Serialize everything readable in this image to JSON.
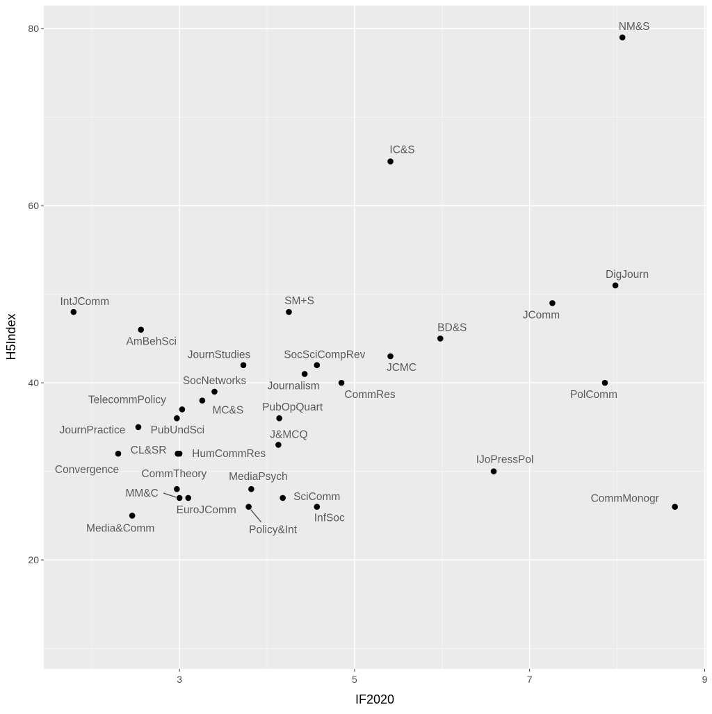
{
  "chart_data": {
    "type": "scatter",
    "title": "",
    "xlabel": "IF2020",
    "ylabel": "H5Index",
    "xlim": [
      1.45,
      9.02
    ],
    "ylim": [
      7.7,
      82.6
    ],
    "xticks": [
      3,
      5,
      7,
      9
    ],
    "yticks": [
      20,
      40,
      60,
      80
    ],
    "xminor": [
      2,
      4,
      6,
      8
    ],
    "yminor": [
      10,
      30,
      50,
      70
    ],
    "grid": true,
    "points": [
      {
        "label": "NM&S",
        "x": 8.06,
        "y": 79
      },
      {
        "label": "IC&S",
        "x": 5.41,
        "y": 65
      },
      {
        "label": "DigJourn",
        "x": 7.98,
        "y": 51
      },
      {
        "label": "JComm",
        "x": 7.26,
        "y": 49
      },
      {
        "label": "IntJComm",
        "x": 1.79,
        "y": 48
      },
      {
        "label": "SM+S",
        "x": 4.25,
        "y": 48
      },
      {
        "label": "AmBehSci",
        "x": 2.56,
        "y": 46
      },
      {
        "label": "BD&S",
        "x": 5.98,
        "y": 45
      },
      {
        "label": "JCMC",
        "x": 5.41,
        "y": 43
      },
      {
        "label": "JournStudies",
        "x": 3.73,
        "y": 42
      },
      {
        "label": "SocSciCompRev",
        "x": 4.57,
        "y": 42
      },
      {
        "label": "Journalism",
        "x": 4.43,
        "y": 41
      },
      {
        "label": "CommRes",
        "x": 4.85,
        "y": 40
      },
      {
        "label": "PolComm",
        "x": 7.86,
        "y": 40
      },
      {
        "label": "SocNetworks",
        "x": 3.4,
        "y": 39
      },
      {
        "label": "MC&S",
        "x": 3.26,
        "y": 38
      },
      {
        "label": "TelecommPolicy",
        "x": 3.03,
        "y": 37
      },
      {
        "label": "PubUndSci",
        "x": 2.97,
        "y": 36
      },
      {
        "label": "PubOpQuart",
        "x": 4.14,
        "y": 36
      },
      {
        "label": "JournPractice",
        "x": 2.53,
        "y": 35
      },
      {
        "label": "J&MCQ",
        "x": 4.13,
        "y": 33
      },
      {
        "label": "Convergence",
        "x": 2.3,
        "y": 32
      },
      {
        "label": "CL&SR",
        "x": 2.98,
        "y": 32
      },
      {
        "label": "HumCommRes",
        "x": 3.0,
        "y": 32
      },
      {
        "label": "IJoPressPol",
        "x": 6.59,
        "y": 30
      },
      {
        "label": "CommTheory",
        "x": 2.97,
        "y": 28
      },
      {
        "label": "MediaPsych",
        "x": 3.82,
        "y": 28
      },
      {
        "label": "MM&C",
        "x": 3.0,
        "y": 27
      },
      {
        "label": "EuroJComm",
        "x": 3.1,
        "y": 27
      },
      {
        "label": "SciComm",
        "x": 4.18,
        "y": 27
      },
      {
        "label": "Policy&Int",
        "x": 3.79,
        "y": 26
      },
      {
        "label": "InfSoc",
        "x": 4.57,
        "y": 26
      },
      {
        "label": "CommMonogr",
        "x": 8.66,
        "y": 26
      },
      {
        "label": "Media&Comm",
        "x": 2.46,
        "y": 25
      }
    ]
  }
}
